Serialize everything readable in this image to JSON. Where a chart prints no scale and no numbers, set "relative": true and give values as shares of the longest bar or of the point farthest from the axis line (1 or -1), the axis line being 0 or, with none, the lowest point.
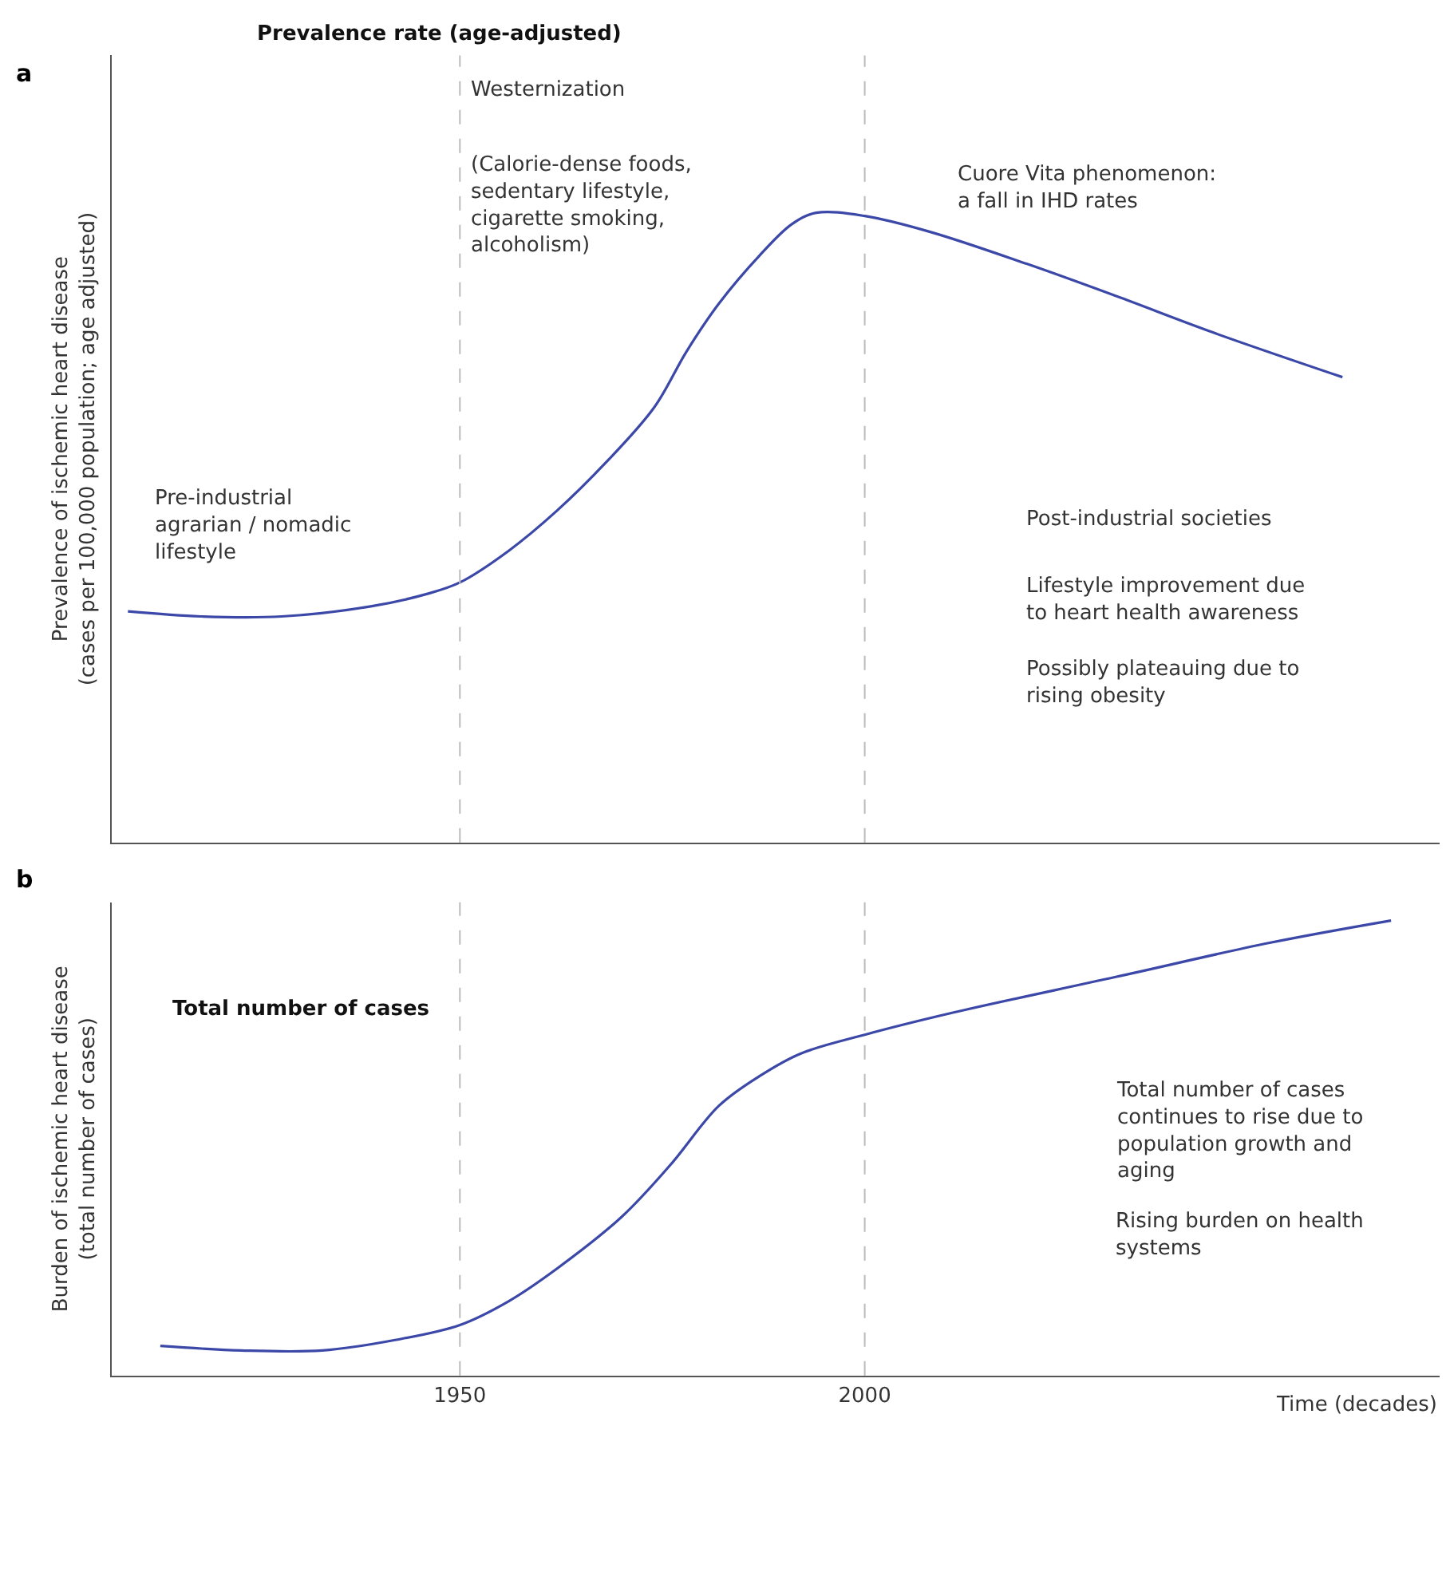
{
  "chart_data": [
    {
      "type": "line",
      "title": "Prevalence rate (age-adjusted)",
      "ylabel": "Prevalence of ischemic heart disease\n(cases per 100,000 population; age adjusted)",
      "relative": true,
      "color": "#3b48a8",
      "x": [
        1909,
        1918,
        1928,
        1939,
        1946,
        1950,
        1956,
        1962,
        1968,
        1974,
        1978,
        1982,
        1987,
        1991,
        1994,
        2000,
        2008,
        2020,
        2031,
        2043,
        2059
      ],
      "values": [
        0.367,
        0.359,
        0.359,
        0.375,
        0.395,
        0.413,
        0.463,
        0.527,
        0.603,
        0.691,
        0.78,
        0.856,
        0.932,
        0.982,
        1,
        0.995,
        0.97,
        0.919,
        0.868,
        0.81,
        0.739
      ],
      "xlim": [
        1907,
        2071
      ],
      "xticks": [
        1950,
        2000
      ],
      "tick_labels": false,
      "ref_lines": [
        {
          "axis": "x",
          "value": 1950,
          "color": "#bbbbbb",
          "line_style": "dashed"
        },
        {
          "axis": "x",
          "value": 2000,
          "color": "#bbbbbb",
          "line_style": "dashed"
        }
      ],
      "annotations": [
        "a",
        "Westernization",
        "(Calorie-dense foods,\nsedentary lifestyle,\ncigarette smoking,\nalcoholism)",
        "Cuore Vita phenomenon:\na fall in IHD rates",
        "Post-industrial societies",
        "Lifestyle improvement due\nto heart health awareness",
        "Possibly plateauing due to\nrising obesity",
        "Pre-industrial\nagrarian / nomadic\nlifestyle"
      ]
    },
    {
      "type": "line",
      "title": "Total number of cases",
      "xlabel": "Time (decades)",
      "ylabel": "Burden of ischemic heart disease\n(total number of cases)",
      "relative": true,
      "color": "#3b48a8",
      "x": [
        1913,
        1923,
        1933,
        1942,
        1950,
        1956,
        1962,
        1970,
        1976,
        1982,
        1987,
        1992,
        2000,
        2011,
        2031,
        2050,
        2065
      ],
      "values": [
        0.065,
        0.055,
        0.055,
        0.078,
        0.111,
        0.163,
        0.235,
        0.349,
        0.463,
        0.593,
        0.658,
        0.707,
        0.749,
        0.798,
        0.876,
        0.951,
        1
      ],
      "xlim": [
        1907,
        2071
      ],
      "xticks": [
        1950,
        2000
      ],
      "tick_labels": "x",
      "ref_lines": [
        {
          "axis": "x",
          "value": 1950,
          "color": "#bbbbbb",
          "line_style": "dashed"
        },
        {
          "axis": "x",
          "value": 2000,
          "color": "#bbbbbb",
          "line_style": "dashed"
        }
      ],
      "annotations": [
        "b",
        "Total number of cases\ncontinues to rise due to\npopulation growth and\naging",
        "Rising burden on health\nsystems"
      ]
    }
  ]
}
